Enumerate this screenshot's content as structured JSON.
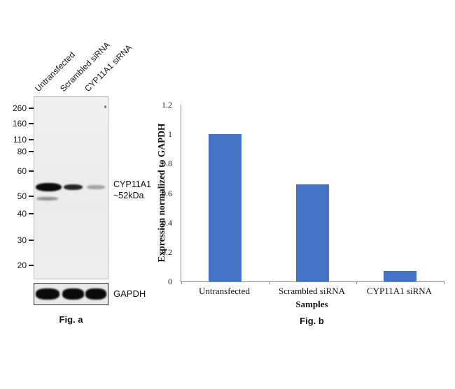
{
  "fig_a": {
    "caption": "Fig. a",
    "lane_labels": [
      "Untransfected",
      "Scrambled siRNA",
      "CYP11A1 siRNA"
    ],
    "mw_markers": [
      "260",
      "160",
      "110",
      "80",
      "60",
      "50",
      "40",
      "30",
      "20"
    ],
    "target_label_line1": "CYP11A1",
    "target_label_line2": "~52kDa",
    "loading_control_label": "GAPDH"
  },
  "fig_b": {
    "caption": "Fig. b"
  },
  "chart_data": {
    "type": "bar",
    "categories": [
      "Untransfected",
      "Scrambled siRNA",
      "CYP11A1 siRNA"
    ],
    "values": [
      1.0,
      0.66,
      0.07
    ],
    "title": "",
    "xlabel": "Samples",
    "ylabel": "Expression normalized to GAPDH",
    "ylim": [
      0,
      1.2
    ],
    "yticks": [
      0,
      0.2,
      0.4,
      0.6,
      0.8,
      1,
      1.2
    ],
    "bar_color": "#4472C4",
    "grid": false,
    "legend": false
  }
}
